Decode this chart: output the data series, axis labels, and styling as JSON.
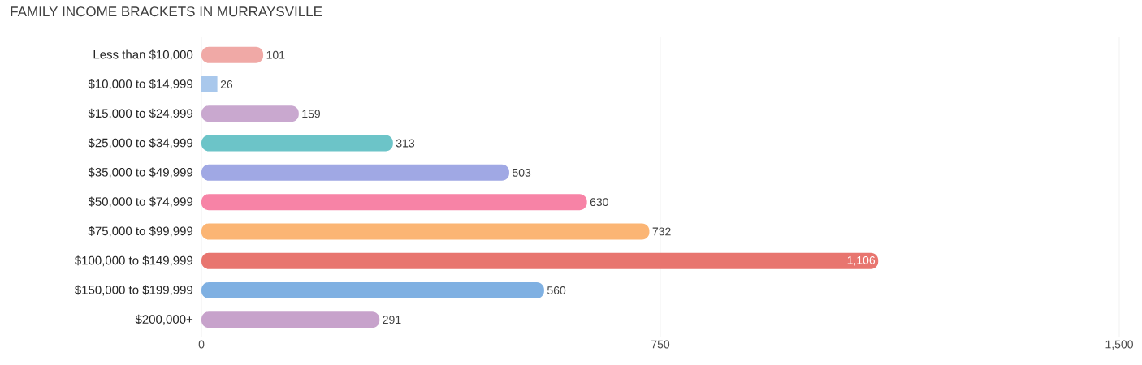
{
  "chart_data": {
    "type": "bar",
    "orientation": "horizontal",
    "title": "FAMILY INCOME BRACKETS IN MURRAYSVILLE",
    "categories": [
      "Less than $10,000",
      "$10,000 to $14,999",
      "$15,000 to $24,999",
      "$25,000 to $34,999",
      "$35,000 to $49,999",
      "$50,000 to $74,999",
      "$75,000 to $99,999",
      "$100,000 to $149,999",
      "$150,000 to $199,999",
      "$200,000+"
    ],
    "values": [
      101,
      26,
      159,
      313,
      503,
      630,
      732,
      1106,
      560,
      291
    ],
    "value_labels": [
      "101",
      "26",
      "159",
      "313",
      "503",
      "630",
      "732",
      "1,106",
      "560",
      "291"
    ],
    "colors": [
      "#f0a9a6",
      "#a9c8ec",
      "#c9a8cf",
      "#6cc4c8",
      "#a0a8e4",
      "#f783a6",
      "#fbb574",
      "#e8756f",
      "#7fb0e2",
      "#c7a2cb"
    ],
    "xlim": [
      0,
      1500
    ],
    "xticks": [
      0,
      750,
      {
        "value": 1500,
        "label": "1,500"
      }
    ],
    "grid": "x"
  }
}
